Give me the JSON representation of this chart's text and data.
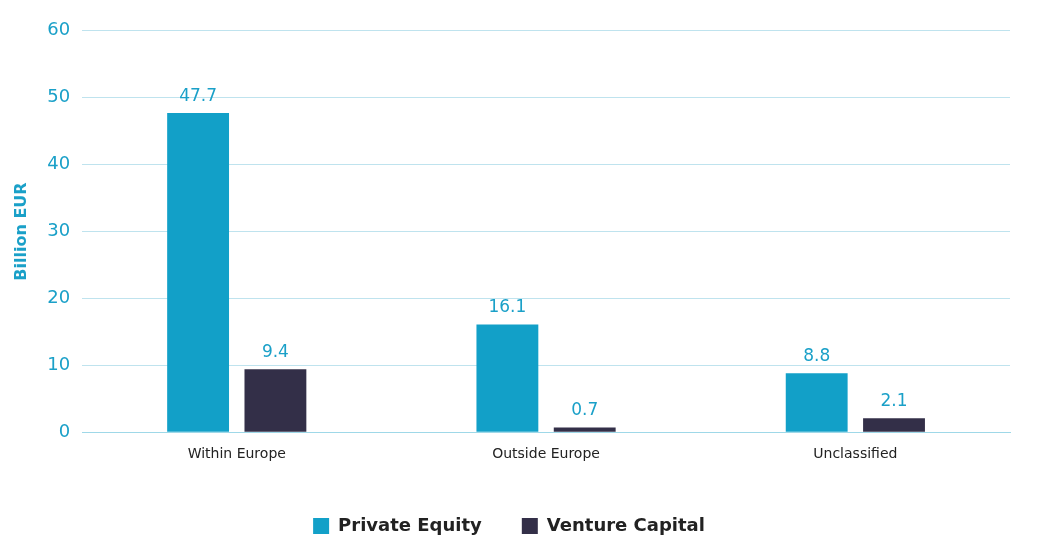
{
  "chart_data": {
    "type": "bar",
    "ylabel": "Billion EUR",
    "categories": [
      "Within Europe",
      "Outside Europe",
      "Unclassified"
    ],
    "series": [
      {
        "name": "Private Equity",
        "color": "#12a0c8",
        "values": [
          47.7,
          16.1,
          8.8
        ]
      },
      {
        "name": "Venture Capital",
        "color": "#332f48",
        "values": [
          9.4,
          0.7,
          2.1
        ]
      }
    ],
    "ylim": [
      0,
      60
    ],
    "yticks": [
      0,
      10,
      20,
      30,
      40,
      50,
      60
    ],
    "grid": "y",
    "legend": "bottom",
    "data_labels": true
  }
}
